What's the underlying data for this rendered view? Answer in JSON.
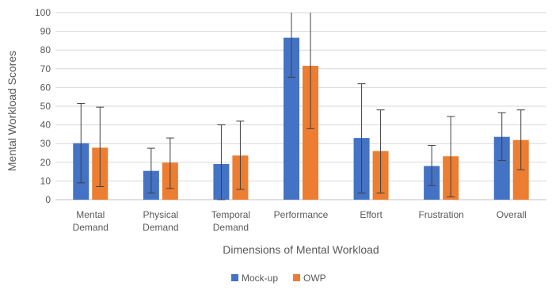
{
  "chart_data": {
    "type": "bar",
    "title": "",
    "xlabel": "Dimensions of Mental Workload",
    "ylabel": "Mental Workload Scores",
    "ylim": [
      0,
      100
    ],
    "yticks": [
      0,
      10,
      20,
      30,
      40,
      50,
      60,
      70,
      80,
      90,
      100
    ],
    "grid": true,
    "legend": "bottom",
    "categories": [
      [
        "Mental",
        "Demand"
      ],
      [
        "Physical",
        "Demand"
      ],
      [
        "Temporal",
        "Demand"
      ],
      [
        "Performance"
      ],
      [
        "Effort"
      ],
      [
        "Frustration"
      ],
      [
        "Overall"
      ]
    ],
    "series": [
      {
        "name": "Mock-up",
        "color": "#4472C4",
        "values": [
          30.2,
          15.4,
          19.1,
          86.6,
          33.0,
          18.0,
          33.6
        ],
        "err_low": [
          9.0,
          3.5,
          0.0,
          65.5,
          3.5,
          7.5,
          21.0
        ],
        "err_high": [
          51.5,
          27.5,
          40.0,
          100,
          62.0,
          29.0,
          46.5
        ]
      },
      {
        "name": "OWP",
        "color": "#ED7D31",
        "values": [
          27.8,
          19.8,
          23.6,
          71.6,
          26.0,
          23.2,
          31.9
        ],
        "err_low": [
          7.0,
          6.0,
          5.5,
          38.0,
          3.5,
          1.5,
          16.0
        ],
        "err_high": [
          49.5,
          33.0,
          42.0,
          100,
          48.0,
          44.5,
          48.0
        ]
      }
    ]
  }
}
